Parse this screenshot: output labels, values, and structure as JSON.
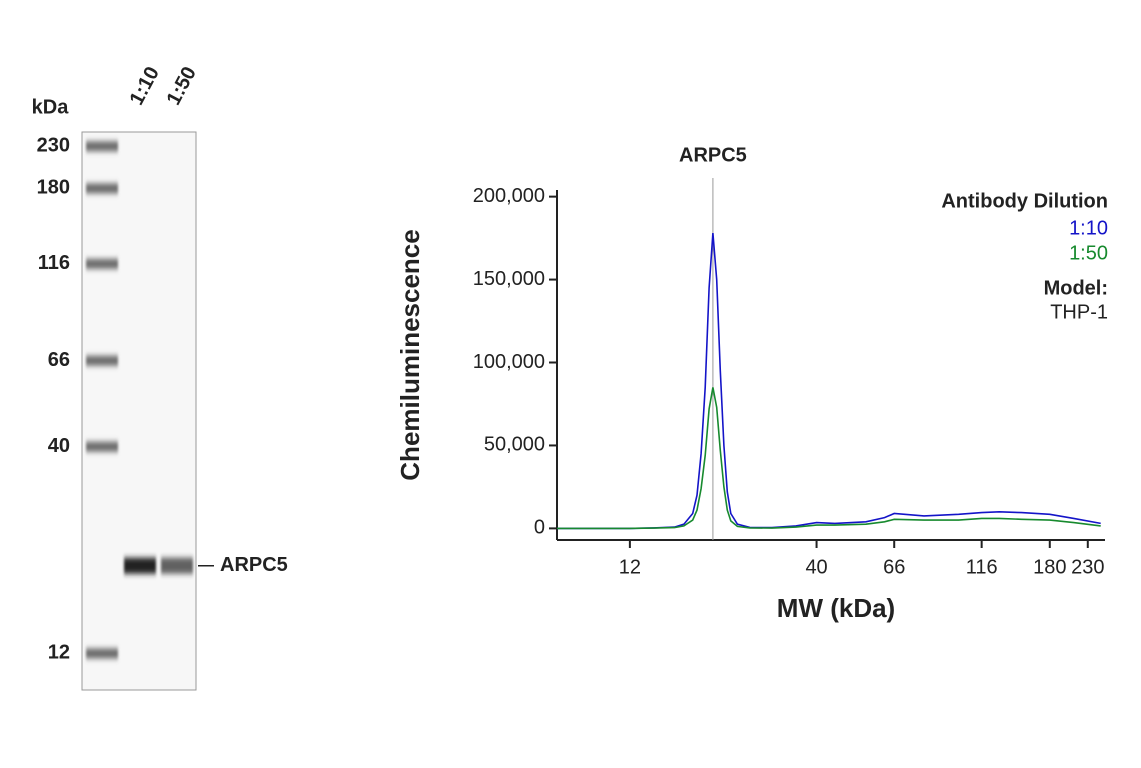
{
  "chart_data": [
    {
      "type": "gel",
      "axis_label": "kDa",
      "markers": [
        230,
        180,
        116,
        66,
        40,
        12
      ],
      "lanes": [
        "1:10",
        "1:50"
      ],
      "band": {
        "label": "ARPC5",
        "mw": 20
      },
      "ylim": [
        9.7,
        250
      ],
      "log_scale": true
    },
    {
      "type": "line",
      "ylabel": "Chemiluminescence",
      "xlabel": "MW (kDa)",
      "log_x": true,
      "xlim": [
        7.5,
        257
      ],
      "ylim": [
        -7000,
        204000
      ],
      "xticks": [
        12,
        40,
        66,
        116,
        180,
        230
      ],
      "yticks": [
        0,
        {
          "value": 50000,
          "label": "50,000"
        },
        {
          "value": 100000,
          "label": "100,000"
        },
        {
          "value": 150000,
          "label": "150,000"
        },
        {
          "value": 200000,
          "label": "200,000"
        }
      ],
      "annotation": {
        "text": "ARPC5",
        "x": 20.5
      },
      "legend_title": "Antibody Dilution",
      "model_label": "Model:",
      "model": "THP-1",
      "x": [
        7.5,
        10,
        12,
        14,
        16,
        17,
        18,
        18.5,
        19,
        19.5,
        20,
        20.5,
        21,
        21.5,
        22,
        22.5,
        23,
        24,
        26,
        30,
        35,
        40,
        45,
        55,
        62,
        66,
        80,
        100,
        116,
        130,
        150,
        180,
        210,
        250
      ],
      "series": [
        {
          "name": "1:10",
          "color": "#1414c8",
          "values": [
            0,
            0,
            0,
            300,
            800,
            2500,
            9000,
            20000,
            45000,
            85000,
            145000,
            178000,
            150000,
            95000,
            50000,
            22000,
            9000,
            2500,
            600,
            500,
            1500,
            3500,
            3000,
            4000,
            6500,
            9000,
            7500,
            8500,
            9500,
            10000,
            9500,
            8500,
            6000,
            3000
          ]
        },
        {
          "name": "1:50",
          "color": "#178a2e",
          "values": [
            0,
            0,
            0,
            200,
            500,
            1500,
            5000,
            11000,
            24000,
            44000,
            72000,
            85000,
            73000,
            47000,
            25000,
            11000,
            4500,
            1200,
            300,
            200,
            800,
            2000,
            2000,
            2500,
            4000,
            5500,
            5000,
            5000,
            6000,
            6000,
            5500,
            5000,
            3500,
            1500
          ]
        }
      ]
    }
  ]
}
